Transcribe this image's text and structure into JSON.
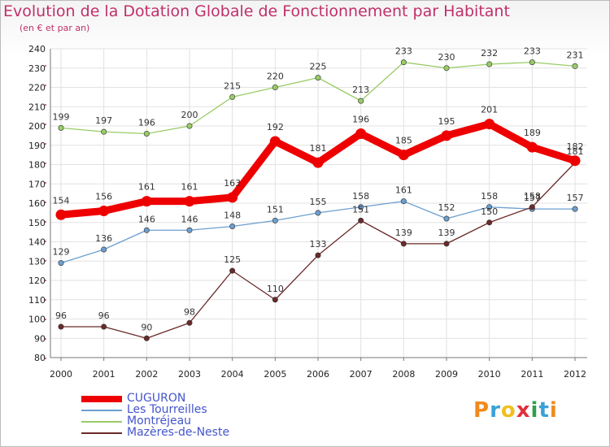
{
  "header": {
    "title": "Evolution de la Dotation Globale de Fonctionnement par Habitant",
    "subtitle": "(en € et par an)"
  },
  "logo": {
    "text": "Proxiti",
    "letters": [
      "P",
      "r",
      "o",
      "x",
      "i",
      "t",
      "i"
    ],
    "colors": [
      "#f08a1c",
      "#3aa0d8",
      "#f0c020",
      "#e0303c",
      "#2ea04a",
      "#3aa0d8",
      "#f08a1c"
    ]
  },
  "chart_data": {
    "type": "line",
    "title": "Evolution de la Dotation Globale de Fonctionnement par Habitant",
    "subtitle": "(en € et par an)",
    "xlabel": "",
    "ylabel": "",
    "categories": [
      "2000",
      "2001",
      "2002",
      "2003",
      "2004",
      "2005",
      "2006",
      "2007",
      "2008",
      "2009",
      "2010",
      "2011",
      "2012"
    ],
    "ylim": [
      80,
      240
    ],
    "yticks": [
      80,
      90,
      100,
      110,
      120,
      130,
      140,
      150,
      160,
      170,
      180,
      190,
      200,
      210,
      220,
      230,
      240
    ],
    "grid": true,
    "legend_position": "bottom-left",
    "series": [
      {
        "name": "CUGURON",
        "color": "#ee0000",
        "emphasis": true,
        "values": [
          154,
          156,
          161,
          161,
          163,
          192,
          181,
          196,
          185,
          195,
          201,
          189,
          182
        ]
      },
      {
        "name": "Les Tourreilles",
        "color": "#6c9fcf",
        "emphasis": false,
        "values": [
          129,
          136,
          146,
          146,
          148,
          151,
          155,
          158,
          161,
          152,
          158,
          157,
          157
        ]
      },
      {
        "name": "Montréjeau",
        "color": "#99cc66",
        "emphasis": false,
        "values": [
          199,
          197,
          196,
          200,
          215,
          220,
          225,
          213,
          233,
          230,
          232,
          233,
          231
        ]
      },
      {
        "name": "Mazères-de-Neste",
        "color": "#6b2a2a",
        "emphasis": false,
        "values": [
          96,
          96,
          90,
          98,
          125,
          110,
          133,
          151,
          139,
          139,
          150,
          158,
          181
        ]
      }
    ]
  }
}
